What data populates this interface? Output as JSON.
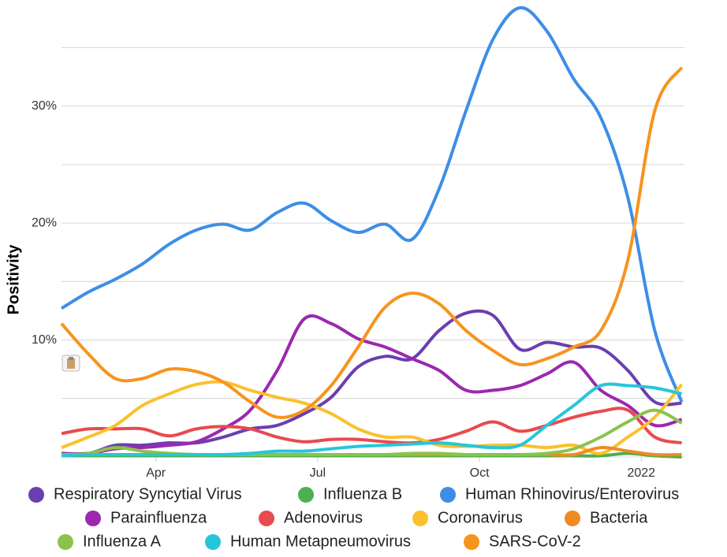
{
  "chart_data": {
    "type": "line",
    "y_label": "Positivity",
    "x": [
      1.25,
      1.75,
      2.25,
      2.75,
      3.25,
      3.75,
      4.25,
      4.75,
      5.25,
      5.75,
      6.25,
      6.75,
      7.25,
      7.75,
      8.25,
      8.75,
      9.25,
      9.75,
      10.25,
      10.75,
      11.25,
      11.75,
      12.25,
      12.75
    ],
    "xlim": [
      1.25,
      12.8
    ],
    "xticks": [
      {
        "value": 3,
        "label": "Apr"
      },
      {
        "value": 6,
        "label": "Jul"
      },
      {
        "value": 9,
        "label": "Oct"
      },
      {
        "value": 12,
        "label": "2022"
      }
    ],
    "ylim": [
      0,
      39
    ],
    "yticks": [
      {
        "value": 10,
        "label": "10%"
      },
      {
        "value": 20,
        "label": "20%"
      },
      {
        "value": 30,
        "label": "30%"
      }
    ],
    "grid_lines": [
      0,
      5,
      15,
      25,
      35
    ],
    "grid": true,
    "legend": "bottom",
    "series": [
      {
        "name": "Respiratory Syncytial Virus",
        "color": "#6a3fb0",
        "values": [
          0.3,
          0.3,
          1.0,
          1.0,
          1.2,
          1.2,
          1.7,
          2.4,
          2.7,
          3.7,
          5.1,
          7.7,
          8.6,
          8.4,
          10.8,
          12.3,
          12.1,
          9.2,
          9.8,
          9.4,
          9.3,
          7.4,
          4.7,
          4.6
        ]
      },
      {
        "name": "Influenza B",
        "color": "#4caf50",
        "values": [
          0.1,
          0.1,
          0.1,
          0.1,
          0.1,
          0.1,
          0.1,
          0.1,
          0.1,
          0.1,
          0.1,
          0.1,
          0.1,
          0.1,
          0.1,
          0.1,
          0.1,
          0.1,
          0.1,
          0.1,
          0.1,
          0.3,
          0.1,
          0.0
        ]
      },
      {
        "name": "Human Rhinovirus/Enterovirus",
        "color": "#3d8ee6",
        "values": [
          12.7,
          14.1,
          15.2,
          16.5,
          18.2,
          19.4,
          19.9,
          19.4,
          20.9,
          21.7,
          20.2,
          19.2,
          19.9,
          18.6,
          22.9,
          29.6,
          35.7,
          38.4,
          36.4,
          32.3,
          29.0,
          22.2,
          10.8,
          4.7
        ]
      },
      {
        "name": "Parainfluenza",
        "color": "#9c27b0",
        "values": [
          0.3,
          0.3,
          0.7,
          0.8,
          1.0,
          1.3,
          2.4,
          4.0,
          7.4,
          11.8,
          11.4,
          10.1,
          9.4,
          8.4,
          7.4,
          5.7,
          5.7,
          6.1,
          7.1,
          8.1,
          5.7,
          4.4,
          2.7,
          3.2
        ]
      },
      {
        "name": "Adenovirus",
        "color": "#e84a4f",
        "values": [
          2.0,
          2.4,
          2.4,
          2.4,
          1.8,
          2.4,
          2.6,
          2.4,
          1.7,
          1.3,
          1.5,
          1.5,
          1.3,
          1.2,
          1.5,
          2.2,
          3.0,
          2.2,
          2.7,
          3.4,
          3.9,
          4.0,
          1.7,
          1.2
        ]
      },
      {
        "name": "Coronavirus",
        "color": "#fbc02d",
        "values": [
          0.8,
          1.7,
          2.7,
          4.4,
          5.4,
          6.2,
          6.4,
          5.7,
          5.1,
          4.6,
          3.7,
          2.4,
          1.7,
          1.7,
          1.0,
          0.9,
          1.0,
          1.0,
          0.8,
          1.0,
          0.3,
          1.7,
          3.4,
          6.2
        ]
      },
      {
        "name": "Bacteria",
        "color": "#f08a24",
        "values": [
          0.2,
          0.2,
          0.2,
          0.2,
          0.2,
          0.2,
          0.2,
          0.2,
          0.2,
          0.2,
          0.2,
          0.2,
          0.2,
          0.2,
          0.2,
          0.2,
          0.2,
          0.2,
          0.2,
          0.2,
          0.8,
          0.5,
          0.2,
          0.2
        ]
      },
      {
        "name": "Influenza A",
        "color": "#8bc34a",
        "values": [
          0.2,
          0.3,
          0.8,
          0.5,
          0.3,
          0.2,
          0.2,
          0.2,
          0.2,
          0.2,
          0.2,
          0.2,
          0.2,
          0.3,
          0.3,
          0.2,
          0.2,
          0.2,
          0.3,
          0.7,
          1.7,
          3.0,
          4.0,
          2.9
        ]
      },
      {
        "name": "Human Metapneumovirus",
        "color": "#26c6da",
        "values": [
          0.1,
          0.2,
          0.2,
          0.2,
          0.2,
          0.2,
          0.2,
          0.3,
          0.5,
          0.5,
          0.7,
          0.9,
          1.0,
          1.1,
          1.2,
          1.0,
          0.8,
          1.0,
          2.7,
          4.4,
          6.1,
          6.1,
          5.9,
          5.4
        ]
      },
      {
        "name": "SARS-CoV-2",
        "color": "#f7941d",
        "values": [
          11.4,
          8.8,
          6.7,
          6.7,
          7.5,
          7.3,
          6.4,
          4.7,
          3.4,
          4.0,
          6.1,
          9.4,
          12.8,
          14.0,
          13.1,
          10.8,
          9.1,
          7.9,
          8.4,
          9.4,
          10.8,
          16.8,
          29.6,
          33.3
        ]
      }
    ]
  }
}
